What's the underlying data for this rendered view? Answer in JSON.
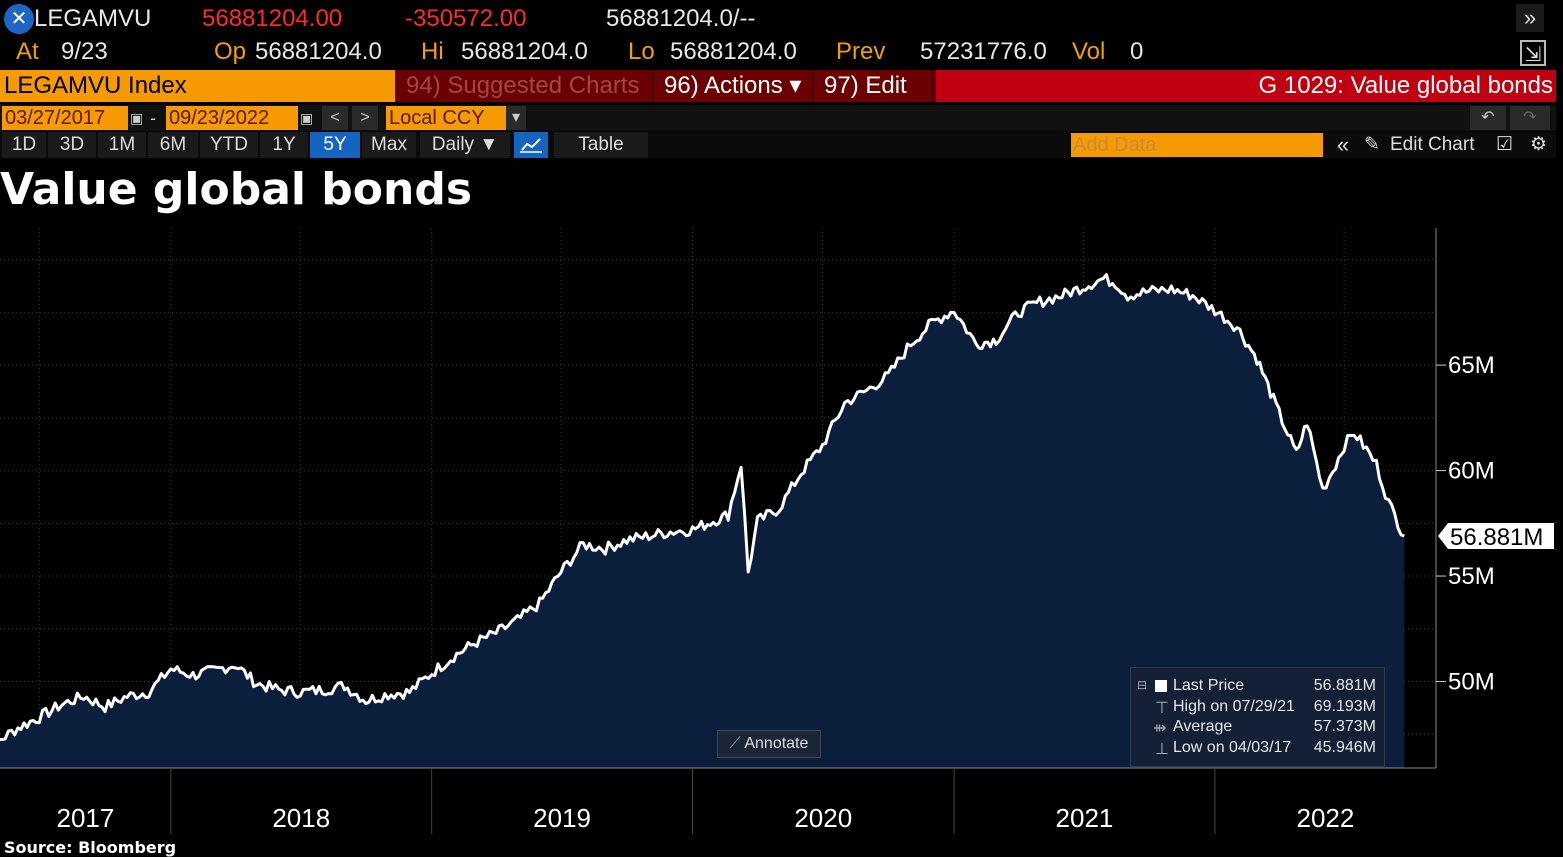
{
  "quote": {
    "ticker": "LEGAMVU",
    "last": "56881204.00",
    "change": "-350572.00",
    "bidask": "56881204.0/--",
    "at_label": "At",
    "at_date": "9/23",
    "op_label": "Op",
    "op_value": "56881204.0",
    "hi_label": "Hi",
    "hi_value": "56881204.0",
    "lo_label": "Lo",
    "lo_value": "56881204.0",
    "prev_label": "Prev",
    "prev_value": "57231776.0",
    "vol_label": "Vol",
    "vol_value": "0"
  },
  "toolbar": {
    "index_name": "LEGAMVU Index",
    "suggested_charts": "94) Suggested Charts",
    "actions": "96) Actions ▾",
    "edit": "97) Edit ▾",
    "graph_title": "G 1029: Value global bonds",
    "date_from": "03/27/2017",
    "date_to": "09/23/2022",
    "currency": "Local CCY",
    "periods": [
      "1D",
      "3D",
      "1M",
      "6M",
      "YTD",
      "1Y",
      "5Y",
      "Max"
    ],
    "active_period": "5Y",
    "frequency": "Daily ▼",
    "table": "Table",
    "add_data_placeholder": "Add Data",
    "edit_chart": "Edit Chart"
  },
  "annotate_label": "Annotate",
  "legend": {
    "last_label": "Last Price",
    "last_value": "56.881M",
    "high_label": "High on 07/29/21",
    "high_value": "69.193M",
    "avg_label": "Average",
    "avg_value": "57.373M",
    "low_label": "Low on 04/03/17",
    "low_value": "45.946M"
  },
  "source": "Source: Bloomberg",
  "colors": {
    "accent": "#f59a00",
    "area": "#0b1f3d",
    "line": "#ffffff",
    "bar_red": "#6a0000"
  },
  "chart_data": {
    "type": "area",
    "title": "Value global bonds",
    "ylabel": "",
    "xlabel": "",
    "y_unit": "M",
    "ylim": [
      45.9,
      71.5
    ],
    "yticks": [
      50,
      55,
      60,
      65
    ],
    "ytick_labels": [
      "50M",
      "55M",
      "60M",
      "65M"
    ],
    "xtick_labels": [
      "2017",
      "2018",
      "2019",
      "2020",
      "2021",
      "2022"
    ],
    "last_value_label": "56.881M",
    "series": [
      {
        "x": [
          "2017-03-27",
          "2017-05-01",
          "2017-06-01",
          "2017-07-01",
          "2017-08-01",
          "2017-09-01",
          "2017-10-01",
          "2017-11-01",
          "2017-12-01",
          "2018-01-01",
          "2018-02-01",
          "2018-03-01",
          "2018-04-01",
          "2018-05-01",
          "2018-06-01",
          "2018-07-01",
          "2018-08-01",
          "2018-09-01",
          "2018-10-01",
          "2018-11-01",
          "2018-12-01",
          "2019-01-01",
          "2019-02-01",
          "2019-03-01",
          "2019-04-01",
          "2019-05-01",
          "2019-06-01",
          "2019-07-01",
          "2019-08-01",
          "2019-09-01",
          "2019-10-01",
          "2019-11-01",
          "2019-12-01",
          "2020-01-01",
          "2020-02-20",
          "2020-03-09",
          "2020-03-19",
          "2020-04-01",
          "2020-05-01",
          "2020-06-01",
          "2020-07-01",
          "2020-08-01",
          "2020-09-01",
          "2020-10-01",
          "2020-11-01",
          "2020-12-01",
          "2021-01-01",
          "2021-02-01",
          "2021-03-01",
          "2021-04-01",
          "2021-05-01",
          "2021-06-01",
          "2021-07-29",
          "2021-08-15",
          "2021-09-01",
          "2021-10-01",
          "2021-11-01",
          "2021-12-01",
          "2022-01-01",
          "2022-02-01",
          "2022-03-01",
          "2022-03-20",
          "2022-04-01",
          "2022-04-25",
          "2022-05-10",
          "2022-06-01",
          "2022-06-15",
          "2022-07-01",
          "2022-07-15",
          "2022-08-01",
          "2022-08-15",
          "2022-09-01",
          "2022-09-23"
        ],
        "values": [
          46.3,
          47.1,
          47.8,
          48.3,
          48.9,
          49.3,
          48.8,
          49.3,
          49.5,
          50.6,
          50.3,
          50.5,
          50.8,
          49.9,
          49.6,
          49.5,
          49.6,
          49.8,
          49.1,
          49.4,
          49.5,
          50.4,
          51.2,
          51.8,
          52.3,
          52.9,
          53.7,
          55.2,
          56.5,
          56.3,
          56.7,
          56.9,
          57.1,
          57.2,
          57.9,
          60.3,
          55.2,
          57.6,
          58.2,
          59.9,
          61.2,
          63.2,
          63.8,
          64.5,
          66.0,
          67.0,
          67.6,
          66.0,
          66.2,
          67.5,
          68.0,
          68.3,
          69.1,
          68.9,
          68.3,
          68.5,
          68.6,
          68.3,
          67.6,
          66.8,
          65.3,
          63.7,
          62.7,
          60.8,
          62.3,
          59.1,
          60.0,
          61.2,
          61.8,
          61.0,
          60.3,
          58.5,
          56.9
        ]
      }
    ],
    "grid": true
  }
}
